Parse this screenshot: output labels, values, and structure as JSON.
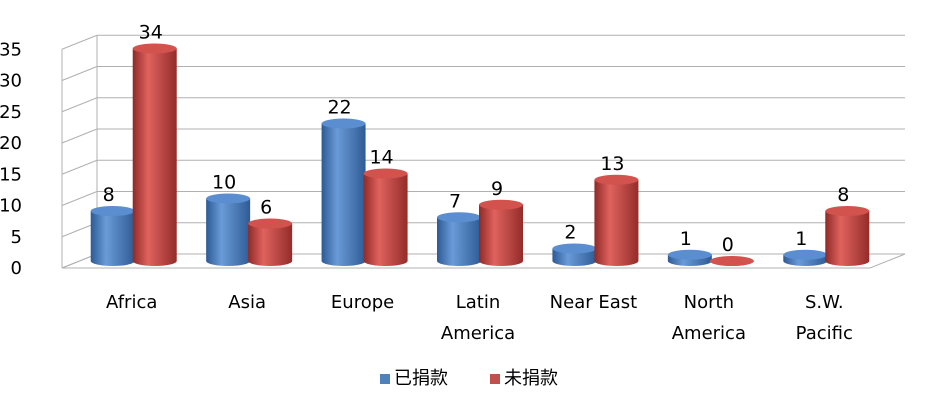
{
  "chart_data": {
    "type": "bar",
    "title": "",
    "xlabel": "",
    "ylabel": "",
    "ylim": [
      0,
      35
    ],
    "y_ticks": [
      0,
      5,
      10,
      15,
      20,
      25,
      30,
      35
    ],
    "grid": true,
    "legend_position": "bottom",
    "categories": [
      [
        "Africa"
      ],
      [
        "Asia"
      ],
      [
        "Europe"
      ],
      [
        "Latin",
        "America"
      ],
      [
        "Near East"
      ],
      [
        "North",
        "America"
      ],
      [
        "S.W.",
        "Pacific"
      ]
    ],
    "series": [
      {
        "name": "已捐款",
        "color": "#4f81bd",
        "values": [
          8,
          10,
          22,
          7,
          2,
          1,
          1
        ]
      },
      {
        "name": "未捐款",
        "color": "#c0504d",
        "values": [
          34,
          6,
          14,
          9,
          13,
          0,
          8
        ]
      }
    ]
  }
}
